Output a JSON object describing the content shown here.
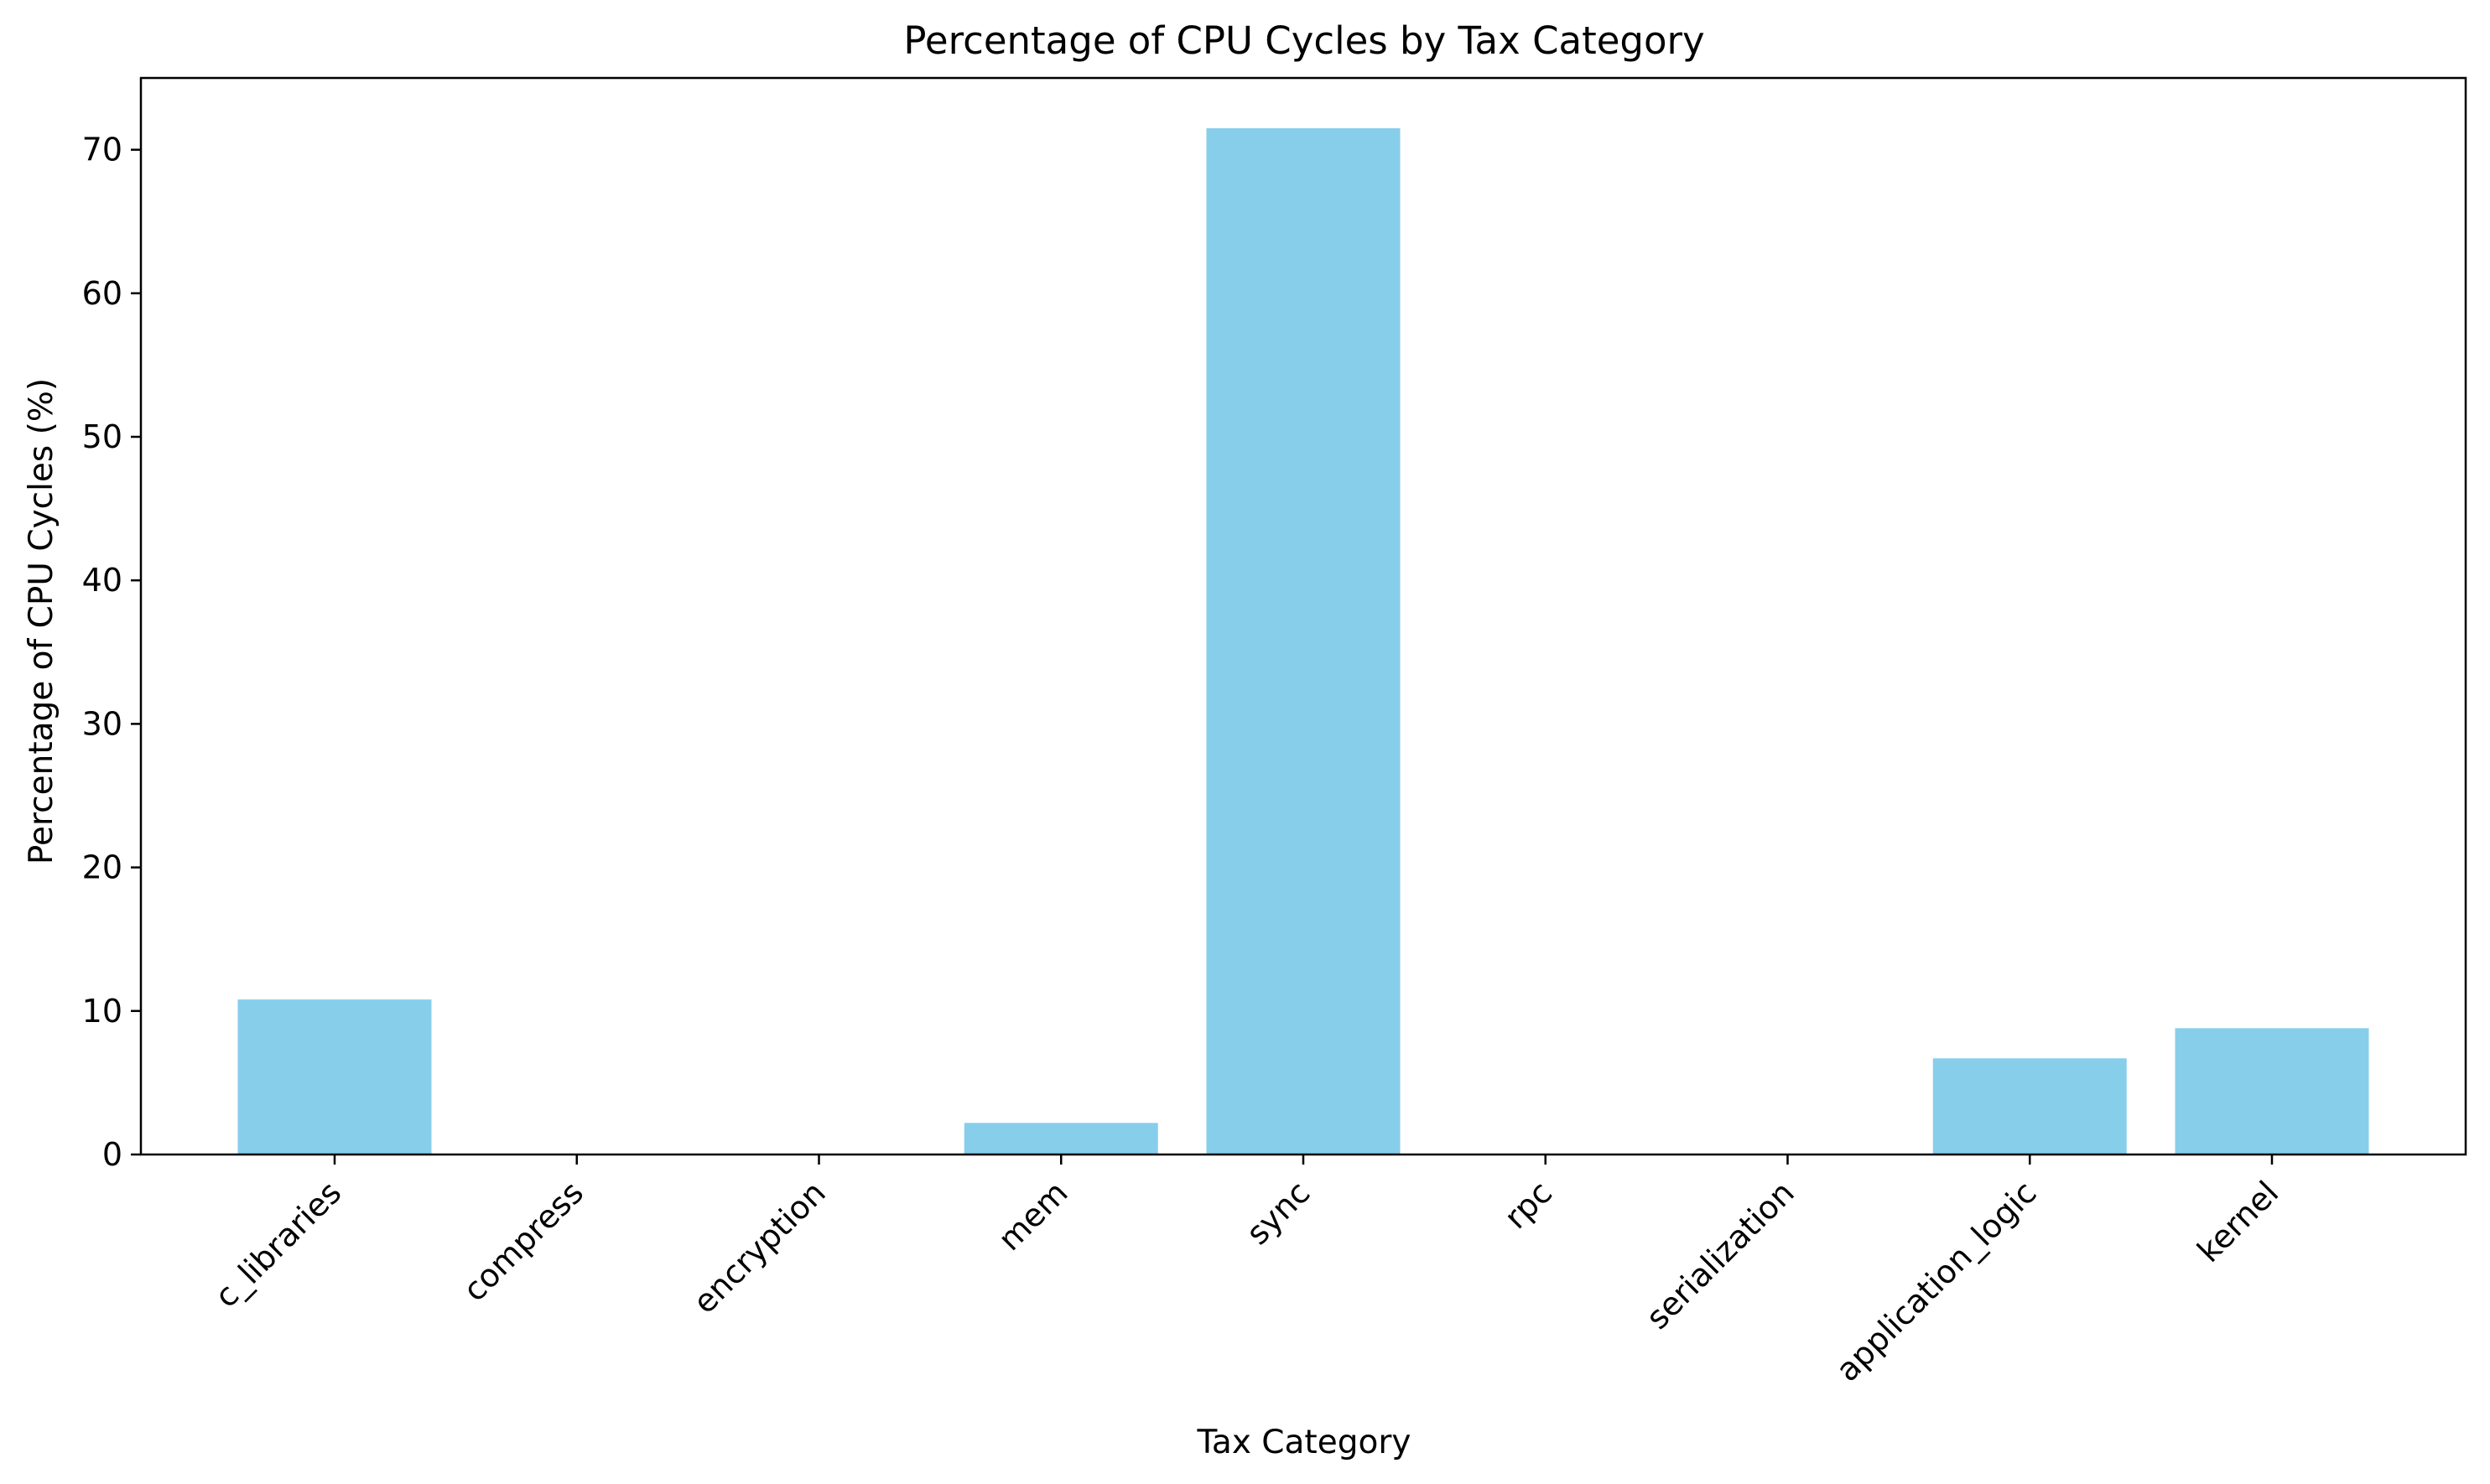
{
  "chart_data": {
    "type": "bar",
    "title": "Percentage of CPU Cycles by Tax Category",
    "xlabel": "Tax Category",
    "ylabel": "Percentage of CPU Cycles (%)",
    "categories": [
      "c_libraries",
      "compress",
      "encryption",
      "mem",
      "sync",
      "rpc",
      "serialization",
      "application_logic",
      "kernel"
    ],
    "values": [
      10.8,
      0,
      0,
      2.2,
      71.5,
      0,
      0,
      6.7,
      8.8
    ],
    "ylim": [
      0,
      75
    ],
    "yticks": [
      0,
      10,
      20,
      30,
      40,
      50,
      60,
      70
    ],
    "bar_color": "#87ceeb",
    "grid": false,
    "legend": "none"
  }
}
